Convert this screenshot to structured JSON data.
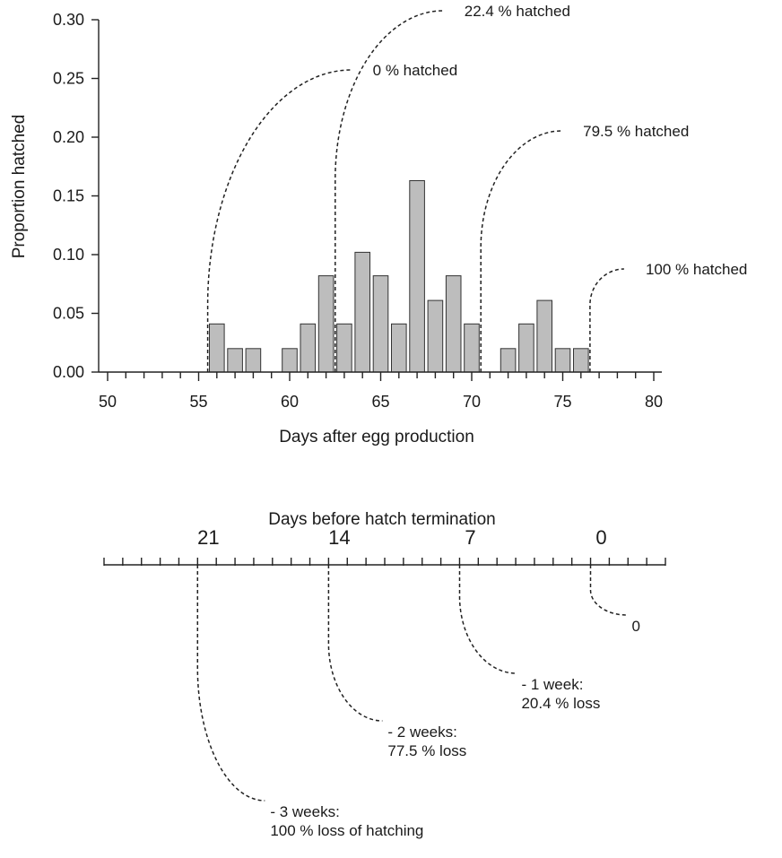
{
  "chart_data": [
    {
      "type": "bar",
      "xlabel": "Days after egg production",
      "ylabel": "Proportion hatched",
      "xlim": [
        50,
        80
      ],
      "ylim": [
        0,
        0.3
      ],
      "x_ticks": [
        50,
        55,
        60,
        65,
        70,
        75,
        80
      ],
      "y_ticks": [
        0.0,
        0.05,
        0.1,
        0.15,
        0.2,
        0.25,
        0.3
      ],
      "y_tick_labels": [
        "0.00",
        "0.05",
        "0.10",
        "0.15",
        "0.20",
        "0.25",
        "0.30"
      ],
      "bar_color": "#bdbdbd",
      "x": [
        56,
        57,
        58,
        59,
        60,
        61,
        62,
        63,
        64,
        65,
        66,
        67,
        68,
        69,
        70,
        71,
        72,
        73,
        74,
        75,
        76
      ],
      "values": [
        0.041,
        0.02,
        0.02,
        0.0,
        0.02,
        0.041,
        0.082,
        0.041,
        0.102,
        0.082,
        0.041,
        0.163,
        0.061,
        0.082,
        0.041,
        0.0,
        0.02,
        0.041,
        0.061,
        0.02,
        0.02
      ],
      "annotations": [
        {
          "x": 55.5,
          "text": "0 % hatched"
        },
        {
          "x": 62.5,
          "text": "22.4 % hatched"
        },
        {
          "x": 70.5,
          "text": "79.5 % hatched"
        },
        {
          "x": 76.5,
          "text": "100 % hatched"
        }
      ]
    },
    {
      "type": "timeline",
      "title": "Days before hatch termination",
      "range": [
        26,
        -4
      ],
      "labeled_ticks": [
        21,
        14,
        7,
        0
      ],
      "tick_labels": [
        "21",
        "14",
        "7",
        "0"
      ],
      "annotations": [
        {
          "at": 21,
          "lines": [
            "- 3 weeks:",
            "100 % loss of hatching"
          ]
        },
        {
          "at": 14,
          "lines": [
            "- 2 weeks:",
            "77.5 % loss"
          ]
        },
        {
          "at": 7,
          "lines": [
            "- 1 week:",
            "20.4 % loss"
          ]
        },
        {
          "at": 0,
          "lines": [
            "0"
          ]
        }
      ]
    }
  ]
}
